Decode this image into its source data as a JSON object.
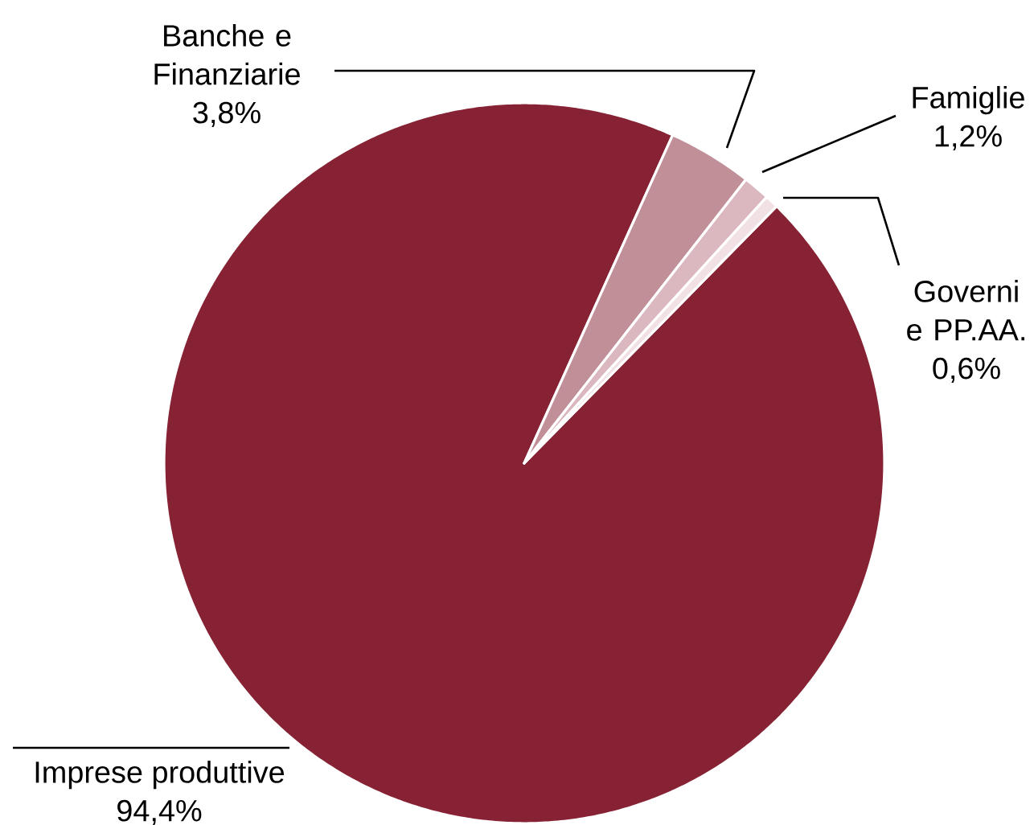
{
  "chart_data": {
    "type": "pie",
    "categories": [
      "Imprese produttive",
      "Banche e Finanziarie",
      "Famiglie",
      "Governi e PP.AA."
    ],
    "values": [
      94.4,
      3.8,
      1.2,
      0.6
    ],
    "colors": [
      "#862234",
      "#c08f97",
      "#dbb8bf",
      "#f2e1e4"
    ],
    "value_labels": [
      "94,4%",
      "3,8%",
      "1,2%",
      "0,6%"
    ]
  }
}
